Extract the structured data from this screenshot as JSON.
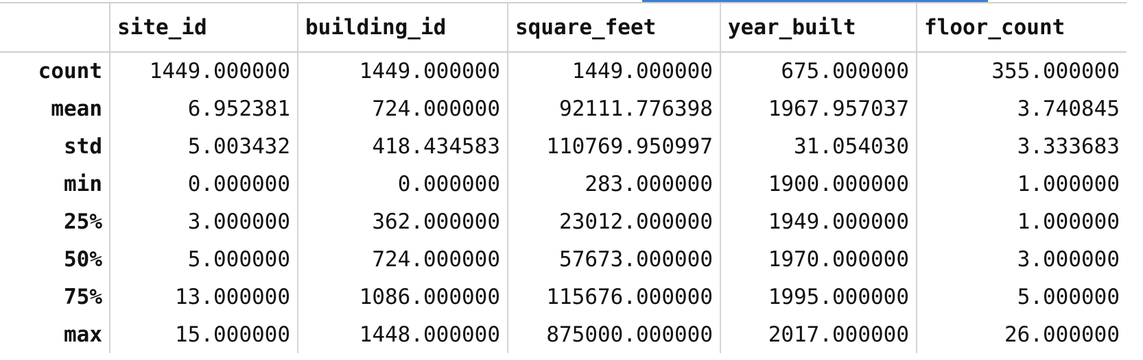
{
  "table": {
    "columns": [
      "site_id",
      "building_id",
      "square_feet",
      "year_built",
      "floor_count"
    ],
    "rows": [
      {
        "label": "count",
        "values": [
          "1449.000000",
          "1449.000000",
          "1449.000000",
          "675.000000",
          "355.000000"
        ]
      },
      {
        "label": "mean",
        "values": [
          "6.952381",
          "724.000000",
          "92111.776398",
          "1967.957037",
          "3.740845"
        ]
      },
      {
        "label": "std",
        "values": [
          "5.003432",
          "418.434583",
          "110769.950997",
          "31.054030",
          "3.333683"
        ]
      },
      {
        "label": "min",
        "values": [
          "0.000000",
          "0.000000",
          "283.000000",
          "1900.000000",
          "1.000000"
        ]
      },
      {
        "label": "25%",
        "values": [
          "3.000000",
          "362.000000",
          "23012.000000",
          "1949.000000",
          "1.000000"
        ]
      },
      {
        "label": "50%",
        "values": [
          "5.000000",
          "724.000000",
          "57673.000000",
          "1970.000000",
          "3.000000"
        ]
      },
      {
        "label": "75%",
        "values": [
          "13.000000",
          "1086.000000",
          "115676.000000",
          "1995.000000",
          "5.000000"
        ]
      },
      {
        "label": "max",
        "values": [
          "15.000000",
          "1448.000000",
          "875000.000000",
          "2017.000000",
          "26.000000"
        ]
      }
    ]
  },
  "colors": {
    "accent": "#3b7fd4",
    "grid": "#d4d4d4",
    "text": "#111111",
    "background": "#ffffff"
  }
}
